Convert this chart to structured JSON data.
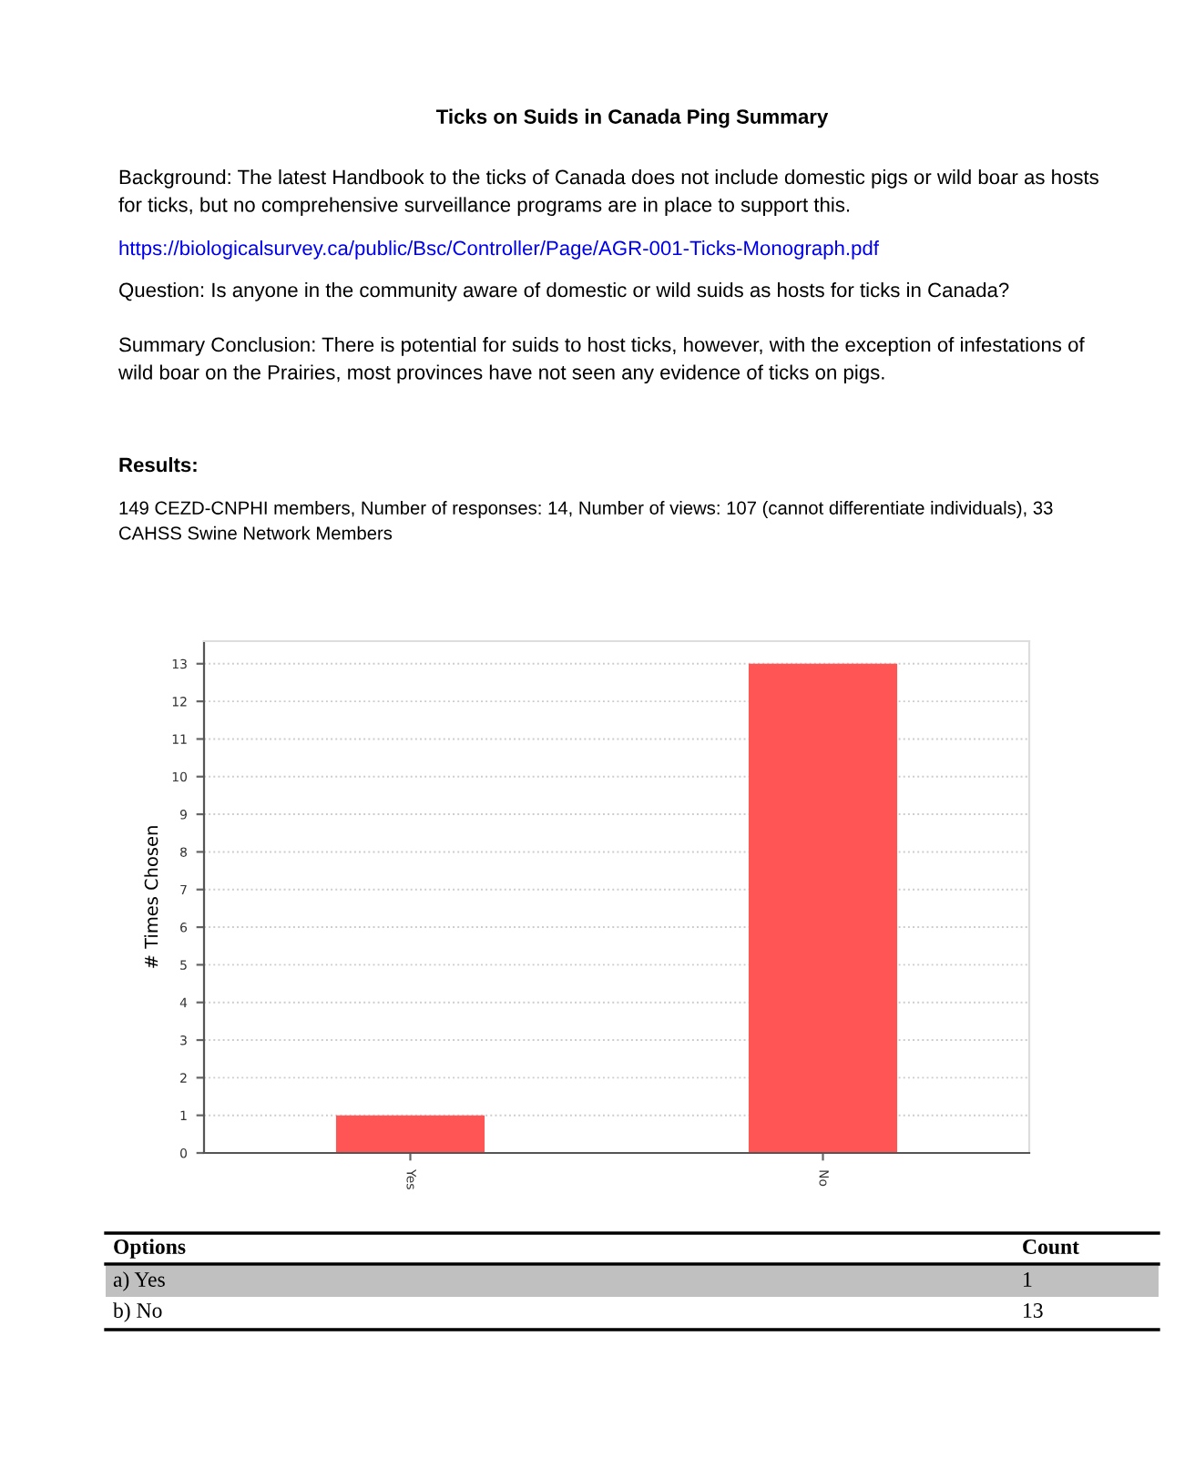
{
  "chart_data": {
    "type": "bar",
    "title": "Ticks on Suids in Canada Ping Summary",
    "ylabel": "# Times Chosen",
    "categories": [
      "Yes",
      "No"
    ],
    "values": [
      1,
      13
    ],
    "color": "#ff5555",
    "ylim": [
      0,
      13.6
    ],
    "yticks": [
      0,
      1,
      2,
      3,
      4,
      5,
      6,
      7,
      8,
      9,
      10,
      11,
      12,
      13
    ],
    "grid": "y",
    "annotations": [
      "Background: The latest Handbook to the ticks of Canada does not include domestic pigs or wild boar as hosts for ticks, but no comprehensive surveillance programs are in place to support this.",
      "https://biologicalsurvey.ca/public/Bsc/Controller/Page/AGR-001-Ticks-Monograph.pdf",
      "Question: Is anyone in the community aware of domestic or wild suids as hosts for ticks in Canada?",
      "Summary Conclusion: There is potential for suids to host ticks, however, with the exception of infestations of wild boar on the Prairies, most provinces have not seen any evidence of ticks on pigs.",
      "Results:",
      "149 CEZD-CNPHI members, Number of responses: 14, Number of views: 107 (cannot differentiate individuals), 33 CAHSS Swine Network Members",
      "Options",
      "Count",
      "a) Yes",
      "b) No",
      "1",
      "13"
    ]
  }
}
